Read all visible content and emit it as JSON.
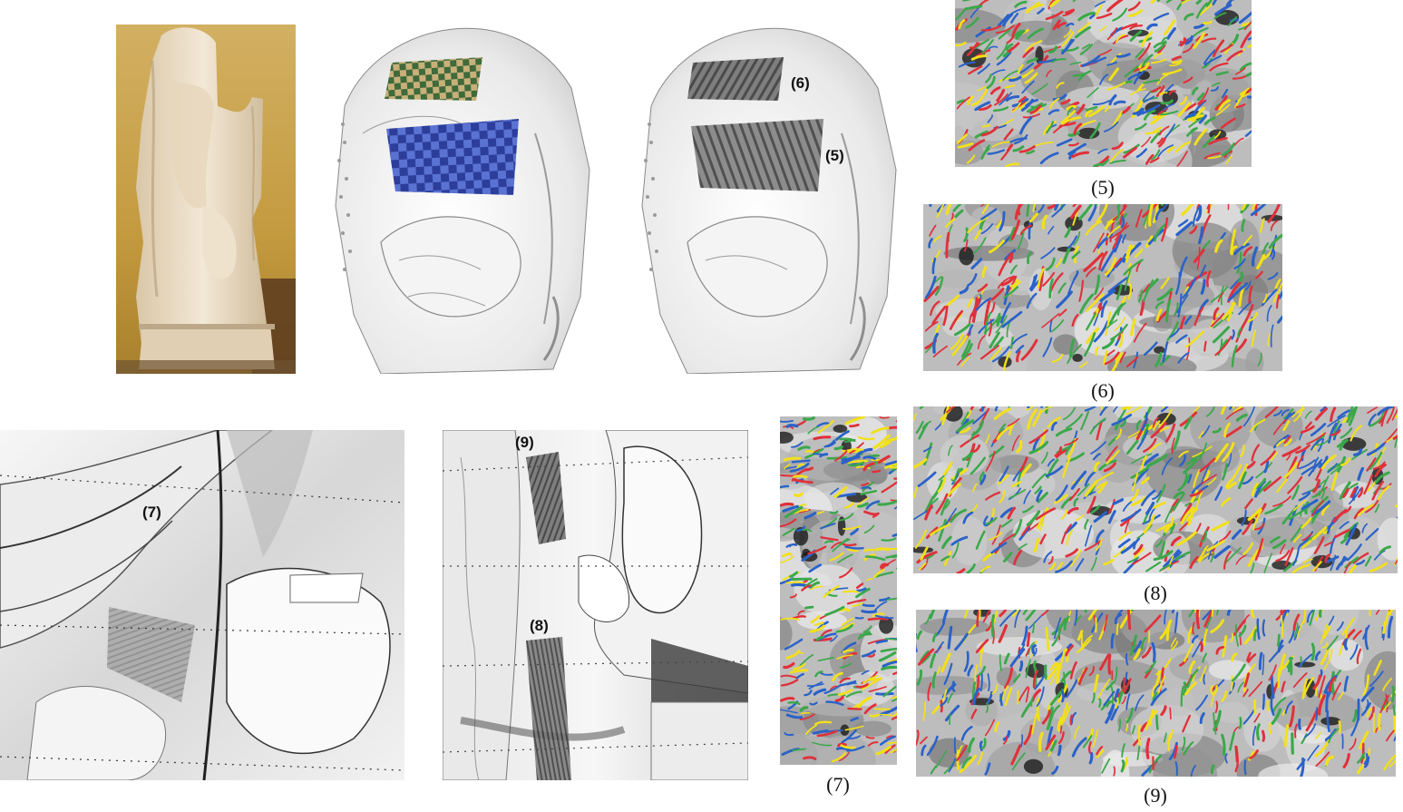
{
  "figure": {
    "scan_labels": {
      "scan_right": {
        "patch_top": "(6)",
        "patch_bottom": "(5)"
      },
      "bottom_left": {
        "patch": "(7)"
      },
      "bottom_mid": {
        "patch_top": "(9)",
        "patch_bottom": "(8)"
      }
    },
    "captions": {
      "p5": "(5)",
      "p6": "(6)",
      "p7": "(7)",
      "p8": "(8)",
      "p9": "(9)"
    },
    "colors": {
      "stroke_red": "#e0303a",
      "stroke_yellow": "#f2e01a",
      "stroke_green": "#3aa84a",
      "stroke_blue": "#2a62c8",
      "checker_green": "#3f6a3a",
      "checker_tan": "#c8b07a",
      "checker_blue_dark": "#2c3d9a",
      "checker_blue_light": "#5a72d2",
      "photo_bg": "#c9a34a",
      "marble": "#f2e7d6"
    }
  }
}
